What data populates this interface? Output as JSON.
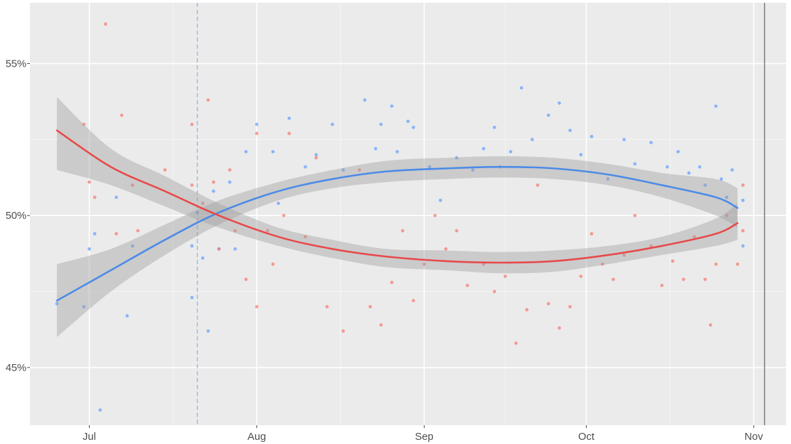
{
  "chart_data": {
    "type": "scatter",
    "title": "",
    "xlabel": "",
    "ylabel": "",
    "x_axis": {
      "ticks": [
        {
          "date": "2020-07-01",
          "label": "Jul"
        },
        {
          "date": "2020-08-01",
          "label": "Aug"
        },
        {
          "date": "2020-09-01",
          "label": "Sep"
        },
        {
          "date": "2020-10-01",
          "label": "Oct"
        },
        {
          "date": "2020-11-01",
          "label": "Nov"
        }
      ],
      "range": [
        "2020-06-20",
        "2020-11-07"
      ]
    },
    "y_axis": {
      "ticks": [
        {
          "value": 45,
          "label": "45%"
        },
        {
          "value": 50,
          "label": "50%"
        },
        {
          "value": 55,
          "label": "55%"
        }
      ],
      "range": [
        43.1,
        57.0
      ]
    },
    "grid": true,
    "legend": "none",
    "colors": {
      "blue": "#619cff",
      "red": "#f8766d",
      "blue_line": "#4c8be6",
      "red_line": "#e8494a",
      "band": "#9a9a9a",
      "panel": "#ebebeb",
      "reference_line": "#7a7a7a"
    },
    "reference_lines": [
      {
        "date": "2020-07-21",
        "style": "dashed",
        "color": "#8fb4e6"
      },
      {
        "date": "2020-11-03",
        "style": "solid",
        "color": "#7a7a7a"
      }
    ],
    "series": [
      {
        "color_key": "blue",
        "line_color_key": "blue_line",
        "trend": [
          [
            "2020-06-25",
            47.2
          ],
          [
            "2020-07-05",
            48.2
          ],
          [
            "2020-07-15",
            49.2
          ],
          [
            "2020-07-25",
            50.1
          ],
          [
            "2020-08-05",
            50.8
          ],
          [
            "2020-08-15",
            51.2
          ],
          [
            "2020-08-25",
            51.45
          ],
          [
            "2020-09-05",
            51.55
          ],
          [
            "2020-09-15",
            51.6
          ],
          [
            "2020-09-25",
            51.55
          ],
          [
            "2020-10-05",
            51.35
          ],
          [
            "2020-10-15",
            51.0
          ],
          [
            "2020-10-25",
            50.6
          ],
          [
            "2020-10-29",
            50.25
          ]
        ],
        "band": [
          [
            "2020-06-25",
            46.0,
            48.4
          ],
          [
            "2020-07-05",
            47.5,
            48.9
          ],
          [
            "2020-07-15",
            48.7,
            49.7
          ],
          [
            "2020-07-25",
            49.7,
            50.5
          ],
          [
            "2020-08-05",
            50.5,
            51.1
          ],
          [
            "2020-08-15",
            50.9,
            51.5
          ],
          [
            "2020-08-25",
            51.1,
            51.8
          ],
          [
            "2020-09-05",
            51.2,
            51.9
          ],
          [
            "2020-09-15",
            51.25,
            51.95
          ],
          [
            "2020-09-25",
            51.2,
            51.9
          ],
          [
            "2020-10-05",
            51.0,
            51.7
          ],
          [
            "2020-10-15",
            50.6,
            51.4
          ],
          [
            "2020-10-25",
            50.0,
            51.2
          ],
          [
            "2020-10-29",
            49.6,
            50.9
          ]
        ],
        "points": [
          [
            "2020-06-25",
            47.1
          ],
          [
            "2020-06-30",
            47.0
          ],
          [
            "2020-07-01",
            48.9
          ],
          [
            "2020-07-02",
            49.4
          ],
          [
            "2020-07-03",
            43.6
          ],
          [
            "2020-07-06",
            50.6
          ],
          [
            "2020-07-08",
            46.7
          ],
          [
            "2020-07-09",
            49.0
          ],
          [
            "2020-07-20",
            47.3
          ],
          [
            "2020-07-20",
            49.0
          ],
          [
            "2020-07-21",
            50.1
          ],
          [
            "2020-07-22",
            48.6
          ],
          [
            "2020-07-23",
            46.2
          ],
          [
            "2020-07-24",
            50.8
          ],
          [
            "2020-07-25",
            48.9
          ],
          [
            "2020-07-27",
            51.1
          ],
          [
            "2020-07-28",
            48.9
          ],
          [
            "2020-07-30",
            52.1
          ],
          [
            "2020-08-01",
            53.0
          ],
          [
            "2020-08-04",
            52.1
          ],
          [
            "2020-08-05",
            50.4
          ],
          [
            "2020-08-07",
            53.2
          ],
          [
            "2020-08-10",
            51.6
          ],
          [
            "2020-08-12",
            52.0
          ],
          [
            "2020-08-15",
            53.0
          ],
          [
            "2020-08-17",
            51.5
          ],
          [
            "2020-08-21",
            53.8
          ],
          [
            "2020-08-23",
            52.2
          ],
          [
            "2020-08-24",
            53.0
          ],
          [
            "2020-08-26",
            53.6
          ],
          [
            "2020-08-27",
            52.1
          ],
          [
            "2020-08-29",
            53.1
          ],
          [
            "2020-08-30",
            52.9
          ],
          [
            "2020-09-02",
            51.6
          ],
          [
            "2020-09-04",
            50.5
          ],
          [
            "2020-09-07",
            51.9
          ],
          [
            "2020-09-10",
            51.5
          ],
          [
            "2020-09-12",
            52.2
          ],
          [
            "2020-09-14",
            52.9
          ],
          [
            "2020-09-15",
            51.6
          ],
          [
            "2020-09-17",
            52.1
          ],
          [
            "2020-09-19",
            54.2
          ],
          [
            "2020-09-21",
            52.5
          ],
          [
            "2020-09-24",
            53.3
          ],
          [
            "2020-09-26",
            53.7
          ],
          [
            "2020-09-28",
            52.8
          ],
          [
            "2020-09-30",
            52.0
          ],
          [
            "2020-10-02",
            52.6
          ],
          [
            "2020-10-05",
            51.2
          ],
          [
            "2020-10-08",
            52.5
          ],
          [
            "2020-10-10",
            51.7
          ],
          [
            "2020-10-13",
            52.4
          ],
          [
            "2020-10-16",
            51.6
          ],
          [
            "2020-10-18",
            52.1
          ],
          [
            "2020-10-20",
            51.4
          ],
          [
            "2020-10-22",
            51.6
          ],
          [
            "2020-10-23",
            51.0
          ],
          [
            "2020-10-25",
            53.6
          ],
          [
            "2020-10-26",
            51.2
          ],
          [
            "2020-10-27",
            50.6
          ],
          [
            "2020-10-28",
            51.5
          ],
          [
            "2020-10-30",
            49.0
          ],
          [
            "2020-10-30",
            50.5
          ]
        ]
      },
      {
        "color_key": "red",
        "line_color_key": "red_line",
        "trend": [
          [
            "2020-06-25",
            52.8
          ],
          [
            "2020-07-05",
            51.6
          ],
          [
            "2020-07-15",
            50.8
          ],
          [
            "2020-07-25",
            50.0
          ],
          [
            "2020-08-05",
            49.3
          ],
          [
            "2020-08-15",
            48.9
          ],
          [
            "2020-08-25",
            48.65
          ],
          [
            "2020-09-05",
            48.5
          ],
          [
            "2020-09-15",
            48.45
          ],
          [
            "2020-09-25",
            48.5
          ],
          [
            "2020-10-05",
            48.7
          ],
          [
            "2020-10-15",
            49.0
          ],
          [
            "2020-10-25",
            49.4
          ],
          [
            "2020-10-29",
            49.75
          ]
        ],
        "band": [
          [
            "2020-06-25",
            51.5,
            53.9
          ],
          [
            "2020-07-05",
            51.0,
            52.2
          ],
          [
            "2020-07-15",
            50.3,
            51.3
          ],
          [
            "2020-07-25",
            49.6,
            50.4
          ],
          [
            "2020-08-05",
            49.0,
            49.6
          ],
          [
            "2020-08-15",
            48.6,
            49.2
          ],
          [
            "2020-08-25",
            48.3,
            48.9
          ],
          [
            "2020-09-05",
            48.2,
            48.85
          ],
          [
            "2020-09-15",
            48.1,
            48.8
          ],
          [
            "2020-09-25",
            48.15,
            48.85
          ],
          [
            "2020-10-05",
            48.4,
            49.0
          ],
          [
            "2020-10-15",
            48.7,
            49.3
          ],
          [
            "2020-10-25",
            49.0,
            49.9
          ],
          [
            "2020-10-29",
            49.2,
            50.4
          ]
        ],
        "points": [
          [
            "2020-06-30",
            53.0
          ],
          [
            "2020-07-01",
            51.1
          ],
          [
            "2020-07-02",
            50.6
          ],
          [
            "2020-07-04",
            56.3
          ],
          [
            "2020-07-06",
            49.4
          ],
          [
            "2020-07-07",
            53.3
          ],
          [
            "2020-07-09",
            51.0
          ],
          [
            "2020-07-10",
            49.5
          ],
          [
            "2020-07-15",
            51.5
          ],
          [
            "2020-07-20",
            53.0
          ],
          [
            "2020-07-20",
            51.0
          ],
          [
            "2020-07-22",
            50.4
          ],
          [
            "2020-07-23",
            53.8
          ],
          [
            "2020-07-24",
            51.1
          ],
          [
            "2020-07-25",
            48.9
          ],
          [
            "2020-07-27",
            51.5
          ],
          [
            "2020-07-28",
            49.5
          ],
          [
            "2020-07-30",
            47.9
          ],
          [
            "2020-08-01",
            52.7
          ],
          [
            "2020-08-01",
            47.0
          ],
          [
            "2020-08-03",
            49.5
          ],
          [
            "2020-08-04",
            48.4
          ],
          [
            "2020-08-06",
            50.0
          ],
          [
            "2020-08-07",
            52.7
          ],
          [
            "2020-08-10",
            49.3
          ],
          [
            "2020-08-12",
            51.9
          ],
          [
            "2020-08-14",
            47.0
          ],
          [
            "2020-08-17",
            46.2
          ],
          [
            "2020-08-20",
            51.5
          ],
          [
            "2020-08-22",
            47.0
          ],
          [
            "2020-08-24",
            46.4
          ],
          [
            "2020-08-26",
            47.8
          ],
          [
            "2020-08-28",
            49.5
          ],
          [
            "2020-08-30",
            47.2
          ],
          [
            "2020-09-01",
            48.4
          ],
          [
            "2020-09-03",
            50.0
          ],
          [
            "2020-09-05",
            48.9
          ],
          [
            "2020-09-07",
            49.5
          ],
          [
            "2020-09-09",
            47.7
          ],
          [
            "2020-09-12",
            48.4
          ],
          [
            "2020-09-14",
            47.5
          ],
          [
            "2020-09-16",
            48.0
          ],
          [
            "2020-09-18",
            45.8
          ],
          [
            "2020-09-20",
            46.9
          ],
          [
            "2020-09-22",
            51.0
          ],
          [
            "2020-09-24",
            47.1
          ],
          [
            "2020-09-26",
            46.3
          ],
          [
            "2020-09-28",
            47.0
          ],
          [
            "2020-09-30",
            48.0
          ],
          [
            "2020-10-02",
            49.4
          ],
          [
            "2020-10-04",
            48.4
          ],
          [
            "2020-10-06",
            47.9
          ],
          [
            "2020-10-08",
            48.7
          ],
          [
            "2020-10-10",
            50.0
          ],
          [
            "2020-10-13",
            49.0
          ],
          [
            "2020-10-15",
            47.7
          ],
          [
            "2020-10-17",
            48.5
          ],
          [
            "2020-10-19",
            47.9
          ],
          [
            "2020-10-21",
            49.3
          ],
          [
            "2020-10-23",
            47.9
          ],
          [
            "2020-10-24",
            46.4
          ],
          [
            "2020-10-25",
            48.4
          ],
          [
            "2020-10-27",
            50.0
          ],
          [
            "2020-10-29",
            48.4
          ],
          [
            "2020-10-30",
            51.0
          ],
          [
            "2020-10-30",
            49.5
          ]
        ]
      }
    ]
  }
}
